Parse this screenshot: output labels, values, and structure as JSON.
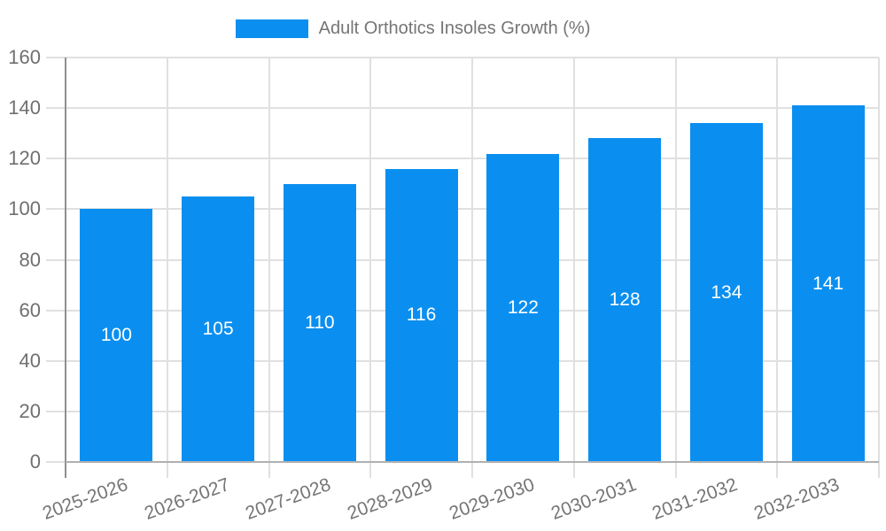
{
  "chart_data": {
    "type": "bar",
    "title": "Adult Orthotics Insoles Growth (%)",
    "legend": {
      "position": "top-center",
      "label": "Adult Orthotics Insoles Growth (%)"
    },
    "categories": [
      "2025-2026",
      "2026-2027",
      "2027-2028",
      "2028-2029",
      "2029-2030",
      "2030-2031",
      "2031-2032",
      "2032-2033"
    ],
    "values": [
      100,
      105,
      110,
      116,
      122,
      128,
      134,
      141
    ],
    "xlabel": "",
    "ylabel": "",
    "ylim": [
      0,
      160
    ],
    "yticks": [
      0,
      20,
      40,
      60,
      80,
      100,
      120,
      140,
      160
    ],
    "grid": true,
    "x_label_rotation_deg": -20,
    "bar_value_labels_position": "inside-middle",
    "colors": {
      "bar": "#0a8ff0",
      "grid": "#e0e0e0",
      "y_axis": "#8f8f8f",
      "x_axis": "#b0b0b0",
      "tick_text": "#6f6f6f",
      "legend_text": "#757575",
      "bar_label_text": "#ffffff",
      "background": "#ffffff"
    }
  }
}
